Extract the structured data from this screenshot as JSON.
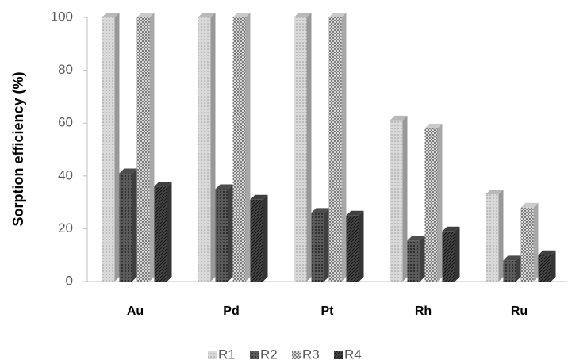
{
  "chart_data": {
    "type": "bar3d",
    "y_label": "Sorption efficiency (%)",
    "categories": [
      "Au",
      "Pd",
      "Pt",
      "Rh",
      "Ru"
    ],
    "series": [
      {
        "name": "R1",
        "color": "#d9d9d9",
        "values": [
          100,
          100,
          100,
          61,
          33
        ]
      },
      {
        "name": "R2",
        "color": "#5a5a5a",
        "values": [
          41,
          35,
          26,
          15.5,
          8
        ]
      },
      {
        "name": "R3",
        "color": "#efefef",
        "values": [
          100,
          100,
          100,
          58,
          28
        ]
      },
      {
        "name": "R4",
        "color": "#4a4a4a",
        "values": [
          36,
          31,
          25,
          19,
          10
        ]
      }
    ],
    "ylim": [
      0,
      100
    ],
    "yticks": [
      0,
      20,
      40,
      60,
      80,
      100
    ],
    "grid": false,
    "legend": "bottom"
  }
}
